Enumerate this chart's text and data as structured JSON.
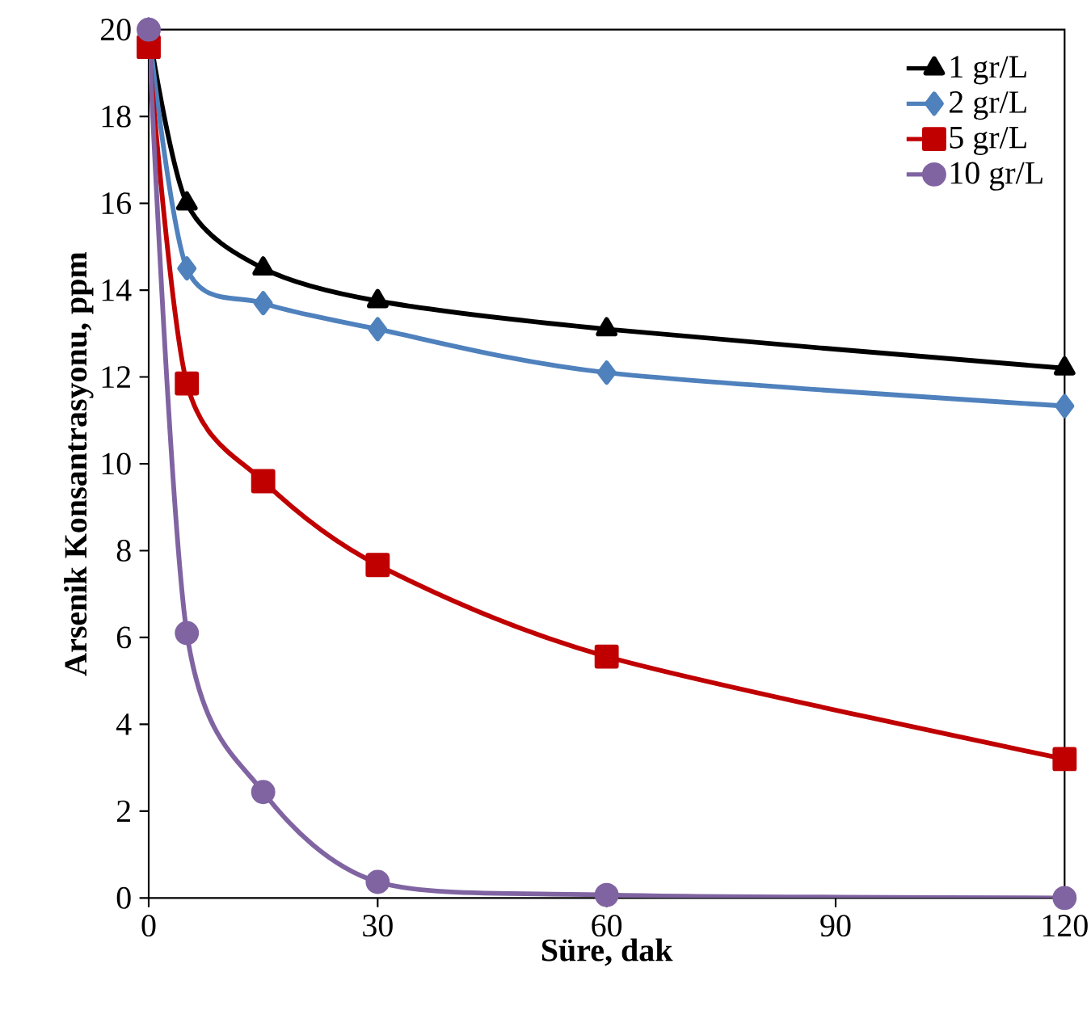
{
  "chart_data": {
    "type": "line",
    "xlabel": "Süre, dak",
    "ylabel": "Arsenik Konsantrasyonu, ppm",
    "x": [
      0,
      5,
      15,
      30,
      60,
      120
    ],
    "series": [
      {
        "name": "1 gr/L",
        "color": "#000000",
        "marker": "triangle",
        "values": [
          20,
          16.0,
          14.5,
          13.75,
          13.1,
          12.2
        ]
      },
      {
        "name": "2 gr/L",
        "color": "#4f81bd",
        "marker": "diamond",
        "values": [
          20,
          14.5,
          13.7,
          13.1,
          12.1,
          11.33
        ]
      },
      {
        "name": "5 gr/L",
        "color": "#c00000",
        "marker": "square",
        "values": [
          19.6,
          11.85,
          9.6,
          7.67,
          5.56,
          3.2
        ]
      },
      {
        "name": "10 gr/L",
        "color": "#8064a2",
        "marker": "circle",
        "values": [
          20,
          6.1,
          2.44,
          0.37,
          0.07,
          0
        ]
      }
    ],
    "xlim": [
      0,
      120
    ],
    "xticks": [
      0,
      30,
      60,
      90,
      120
    ],
    "ylim": [
      0,
      20
    ],
    "yticks": [
      0,
      2,
      4,
      6,
      8,
      10,
      12,
      14,
      16,
      18,
      20
    ],
    "grid": false,
    "legend": "top right",
    "line_style": "solid"
  }
}
